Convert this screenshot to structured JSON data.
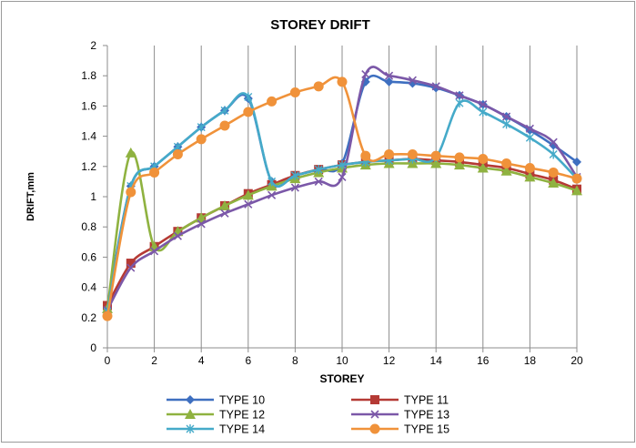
{
  "chart_data": {
    "type": "line",
    "title": "STOREY DRIFT",
    "xlabel": "STOREY",
    "ylabel": "DRIFT,mm",
    "xlim": [
      0,
      20
    ],
    "ylim": [
      0,
      2
    ],
    "xticks": [
      0,
      2,
      4,
      6,
      8,
      10,
      12,
      14,
      16,
      18,
      20
    ],
    "yticks": [
      0,
      0.2,
      0.4,
      0.6,
      0.8,
      1,
      1.2,
      1.4,
      1.6,
      1.8,
      2
    ],
    "ytick_labels": [
      "0",
      "0.2",
      "0.4",
      "0.6",
      "0.8",
      "1",
      "1.2",
      "1.4",
      "1.6",
      "1.8",
      "2"
    ],
    "grid": "vertical",
    "legend_position": "bottom",
    "x": [
      0,
      1,
      2,
      3,
      4,
      5,
      6,
      7,
      8,
      9,
      10,
      11,
      12,
      13,
      14,
      15,
      16,
      17,
      18,
      19,
      20
    ],
    "series": [
      {
        "name": "TYPE 10",
        "color": "#3e6fc0",
        "marker": "diamond",
        "values": [
          0.27,
          1.07,
          1.2,
          1.33,
          1.46,
          1.57,
          1.65,
          1.1,
          1.14,
          1.18,
          1.22,
          1.76,
          1.76,
          1.75,
          1.72,
          1.67,
          1.61,
          1.53,
          1.44,
          1.34,
          1.23
        ]
      },
      {
        "name": "TYPE 11",
        "color": "#b53a35",
        "marker": "square",
        "values": [
          0.28,
          0.56,
          0.67,
          0.77,
          0.86,
          0.94,
          1.02,
          1.08,
          1.14,
          1.18,
          1.21,
          1.23,
          1.24,
          1.25,
          1.24,
          1.23,
          1.21,
          1.19,
          1.15,
          1.11,
          1.05
        ]
      },
      {
        "name": "TYPE 12",
        "color": "#8fb240",
        "marker": "triangle",
        "values": [
          0.26,
          1.29,
          0.67,
          0.77,
          0.86,
          0.94,
          1.01,
          1.07,
          1.12,
          1.16,
          1.19,
          1.21,
          1.22,
          1.22,
          1.22,
          1.21,
          1.19,
          1.17,
          1.13,
          1.09,
          1.04
        ]
      },
      {
        "name": "TYPE 13",
        "color": "#7b58a8",
        "marker": "x",
        "values": [
          0.25,
          0.53,
          0.64,
          0.74,
          0.82,
          0.89,
          0.95,
          1.01,
          1.06,
          1.1,
          1.13,
          1.81,
          1.8,
          1.77,
          1.73,
          1.67,
          1.61,
          1.53,
          1.45,
          1.36,
          1.13
        ]
      },
      {
        "name": "TYPE 14",
        "color": "#45aac9",
        "marker": "star",
        "values": [
          0.24,
          1.07,
          1.2,
          1.33,
          1.46,
          1.57,
          1.66,
          1.1,
          1.14,
          1.18,
          1.21,
          1.23,
          1.24,
          1.25,
          1.26,
          1.62,
          1.56,
          1.48,
          1.39,
          1.28,
          1.12
        ]
      },
      {
        "name": "TYPE 15",
        "color": "#f0923a",
        "marker": "circle",
        "values": [
          0.21,
          1.03,
          1.16,
          1.28,
          1.38,
          1.47,
          1.56,
          1.63,
          1.69,
          1.73,
          1.76,
          1.27,
          1.28,
          1.28,
          1.27,
          1.26,
          1.25,
          1.22,
          1.19,
          1.16,
          1.12
        ]
      }
    ]
  }
}
